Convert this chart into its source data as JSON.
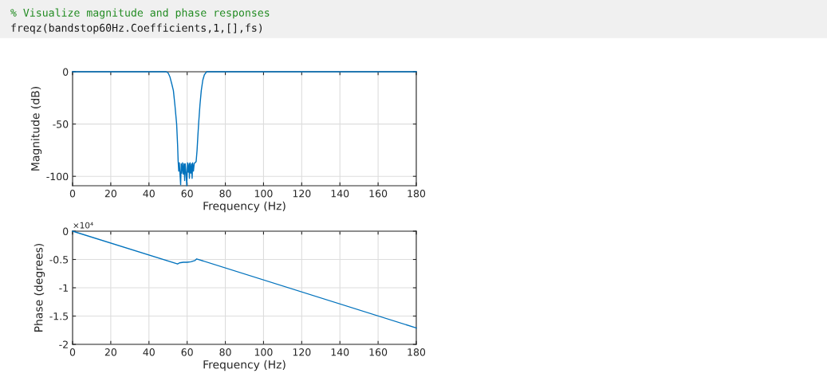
{
  "chart_data": [
    {
      "type": "line",
      "xlabel": "Frequency (Hz)",
      "ylabel": "Magnitude (dB)",
      "annotations": [
        "% Visualize magnitude and phase responses",
        "freqz(bandstop60Hz.Coefficients,1,[],fs)"
      ],
      "series": [
        {
          "color": "#0072bd",
          "x": [
            0,
            20,
            40,
            49,
            50,
            51,
            52,
            52.8,
            53.6,
            54.5,
            55,
            55.3,
            55.6,
            55.9,
            56.2,
            56.6,
            56.9,
            57.2,
            57.6,
            58,
            58.4,
            58.7,
            59,
            59.4,
            59.8,
            60.2,
            60.6,
            61,
            61.2,
            61.5,
            61.9,
            62.3,
            62.6,
            62.9,
            63.3,
            63.7,
            64.1,
            64.7,
            65.2,
            65.6,
            66,
            66.7,
            67.4,
            68.2,
            69,
            70.2,
            90,
            120,
            150,
            180
          ],
          "values": [
            0,
            0,
            0,
            0,
            -1,
            -5,
            -12,
            -18,
            -32,
            -50,
            -70,
            -86,
            -95,
            -87,
            -96,
            -108,
            -88,
            -97,
            -87,
            -98,
            -88,
            -104,
            -88,
            -96,
            -109,
            -87,
            -96,
            -88,
            -102,
            -87,
            -97,
            -88,
            -102,
            -87,
            -95,
            -88,
            -87,
            -86,
            -75,
            -62,
            -50,
            -32,
            -18,
            -8,
            -3,
            0,
            0,
            0,
            0,
            0
          ]
        }
      ],
      "xlim": [
        0,
        180
      ],
      "xticks": [
        0,
        20,
        40,
        60,
        80,
        100,
        120,
        140,
        160,
        180
      ],
      "ylim": [
        -109,
        0
      ],
      "yticks": [
        -100,
        -50,
        0
      ],
      "grid": true
    },
    {
      "type": "line",
      "xlabel": "Frequency (Hz)",
      "ylabel": "Phase (degrees)",
      "annotations": [
        "×10⁴"
      ],
      "series": [
        {
          "color": "#0072bd",
          "x": [
            0,
            55,
            56,
            58,
            60,
            62,
            64,
            65,
            180
          ],
          "values": [
            0,
            -0.58,
            -0.56,
            -0.55,
            -0.55,
            -0.54,
            -0.52,
            -0.49,
            -1.71
          ]
        }
      ],
      "xlim": [
        0,
        180
      ],
      "xticks": [
        0,
        20,
        40,
        60,
        80,
        100,
        120,
        140,
        160,
        180
      ],
      "ylim": [
        -2,
        0
      ],
      "yticks": [
        -2,
        -1.5,
        -1,
        -0.5,
        0
      ],
      "grid": true
    }
  ]
}
